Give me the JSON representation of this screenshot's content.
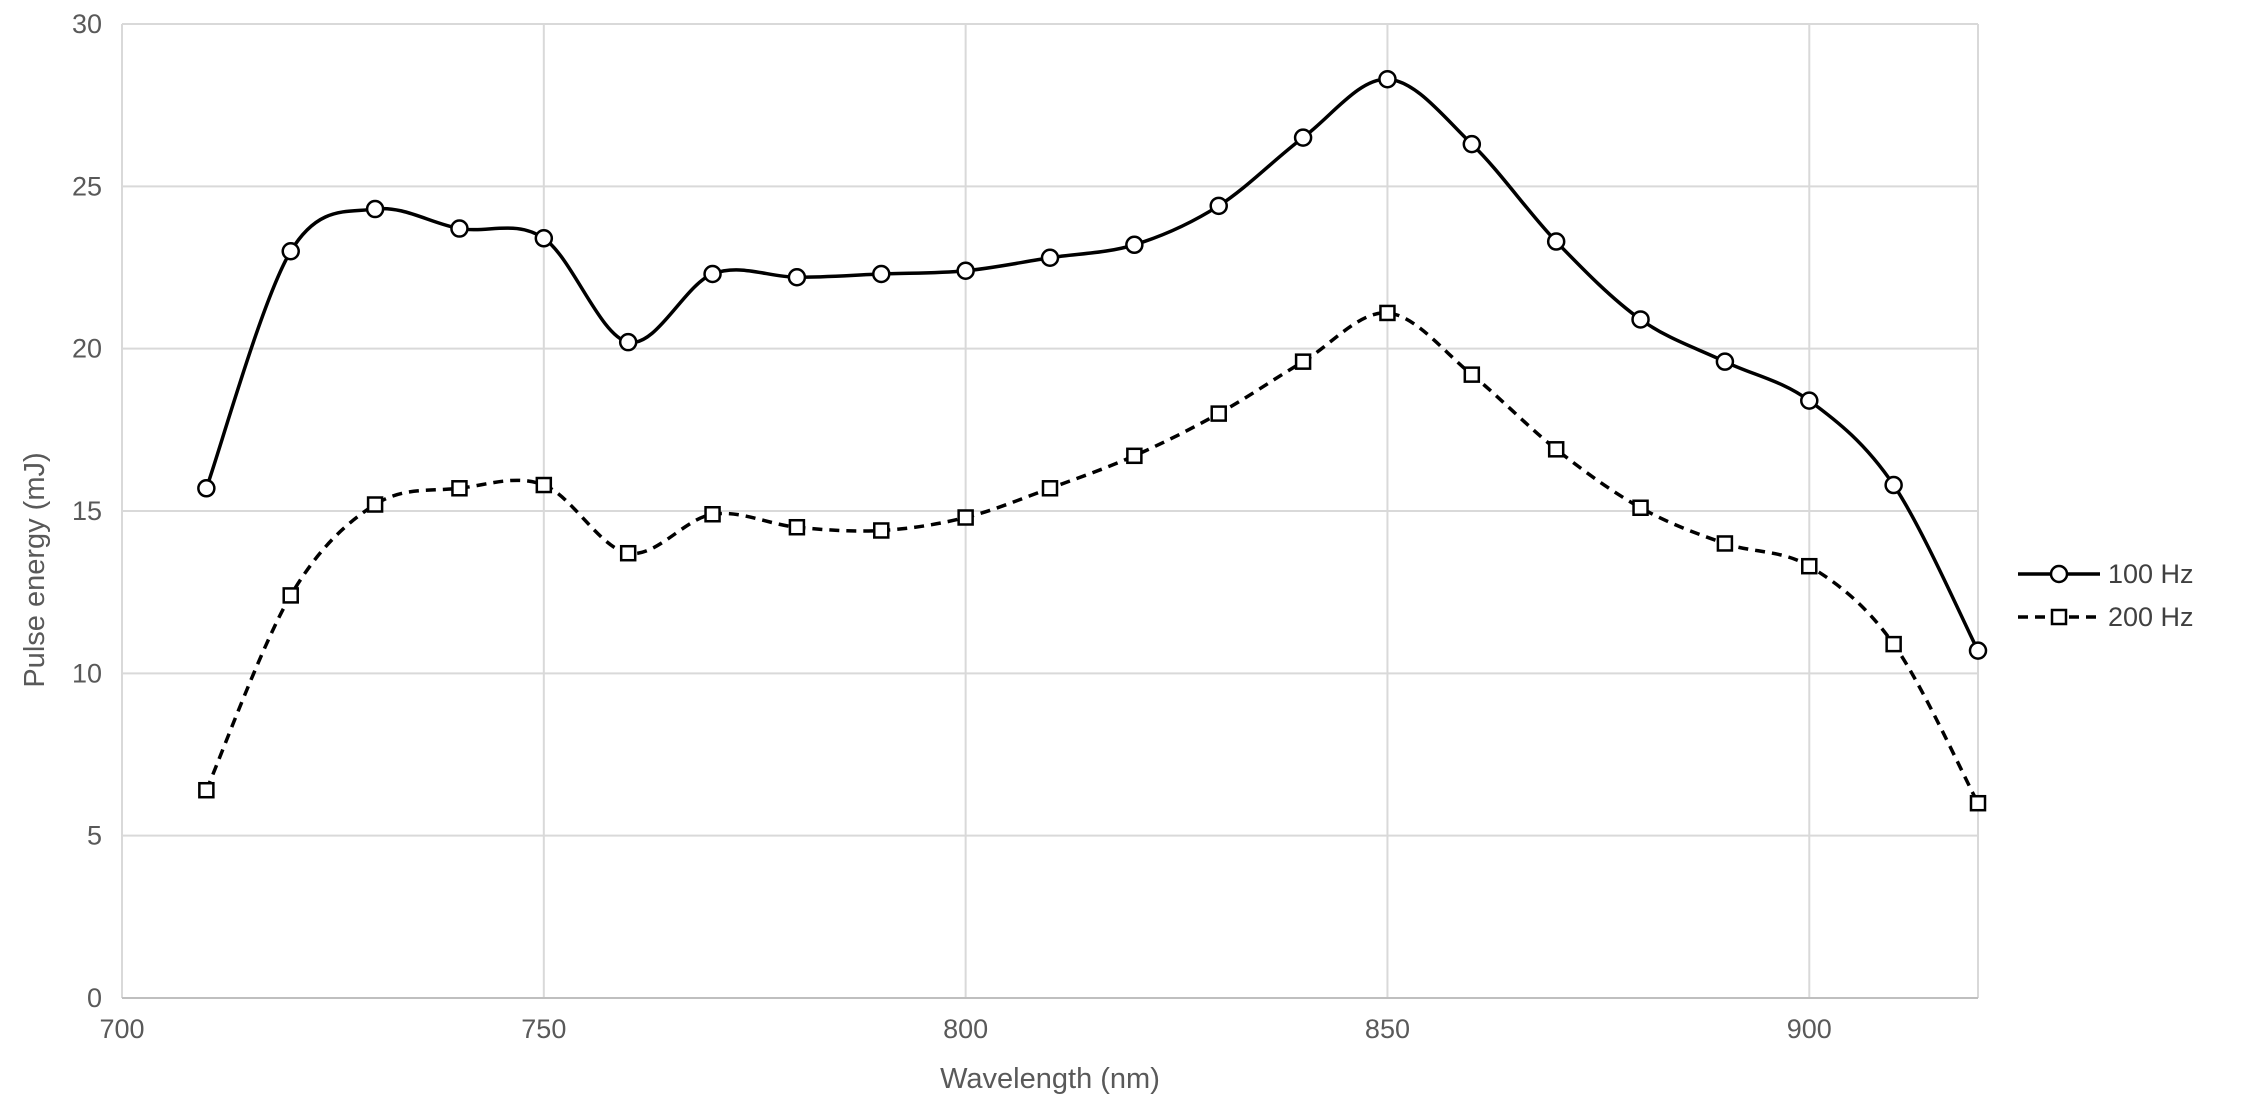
{
  "chart_data": {
    "type": "line",
    "title": "",
    "xlabel": "Wavelength (nm)",
    "ylabel": "Pulse energy (mJ)",
    "xlim": [
      700,
      920
    ],
    "ylim": [
      0,
      30
    ],
    "x_ticks": [
      700,
      750,
      800,
      850,
      900
    ],
    "y_ticks": [
      0,
      5,
      10,
      15,
      20,
      25,
      30
    ],
    "grid": true,
    "smooth": true,
    "legend_position": "right",
    "x": [
      710,
      720,
      730,
      740,
      750,
      760,
      770,
      780,
      790,
      800,
      810,
      820,
      830,
      840,
      850,
      860,
      870,
      880,
      890,
      900,
      910,
      920
    ],
    "series": [
      {
        "name": "100 Hz",
        "line_style": "solid",
        "marker": "circle",
        "color": "#000000",
        "values": [
          15.7,
          23.0,
          24.3,
          23.7,
          23.4,
          20.2,
          22.3,
          22.2,
          22.3,
          22.4,
          22.8,
          23.2,
          24.4,
          26.5,
          28.3,
          26.3,
          23.3,
          20.9,
          19.6,
          18.4,
          15.8,
          10.7
        ]
      },
      {
        "name": "200 Hz",
        "line_style": "dashed",
        "marker": "square",
        "color": "#000000",
        "values": [
          6.4,
          12.4,
          15.2,
          15.7,
          15.8,
          13.7,
          14.9,
          14.5,
          14.4,
          14.8,
          15.7,
          16.7,
          18.0,
          19.6,
          21.1,
          19.2,
          16.9,
          15.1,
          14.0,
          13.3,
          10.9,
          6.0
        ]
      }
    ]
  }
}
